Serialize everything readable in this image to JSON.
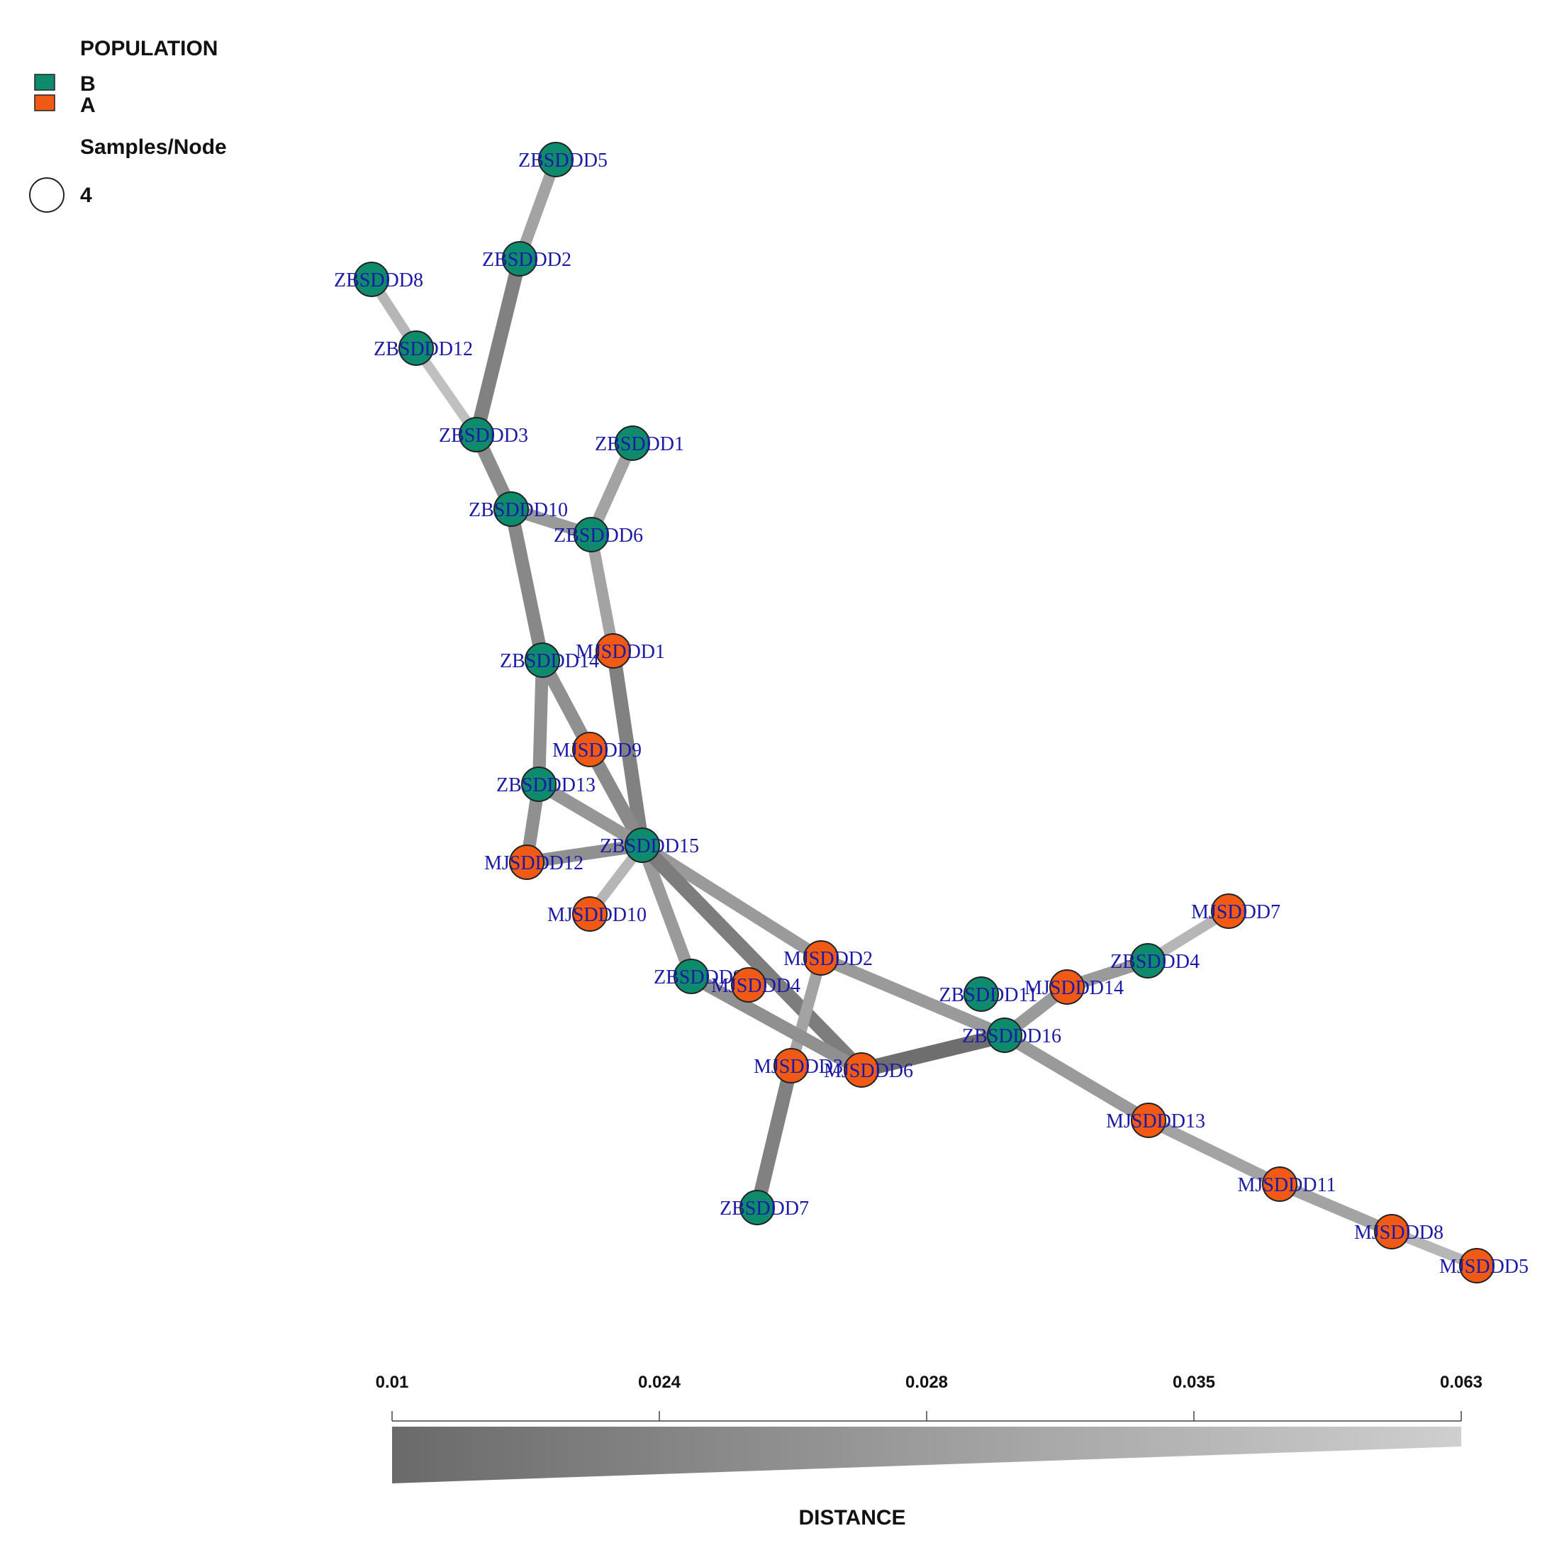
{
  "legend": {
    "population_title": "POPULATION",
    "groups": [
      {
        "label": "B",
        "color": "#0e8a6c"
      },
      {
        "label": "A",
        "color": "#f05a14"
      }
    ],
    "size_title": "Samples/Node",
    "size_value": "4"
  },
  "nodes": [
    {
      "id": "ZBSDDD5",
      "group": "B"
    },
    {
      "id": "ZBSDDD2",
      "group": "B"
    },
    {
      "id": "ZBSDDD8",
      "group": "B"
    },
    {
      "id": "ZBSDDD12",
      "group": "B"
    },
    {
      "id": "ZBSDDD3",
      "group": "B"
    },
    {
      "id": "ZBSDDD1",
      "group": "B"
    },
    {
      "id": "ZBSDDD10",
      "group": "B"
    },
    {
      "id": "ZBSDDD6",
      "group": "B"
    },
    {
      "id": "ZBSDDD14",
      "group": "B"
    },
    {
      "id": "MJSDDD1",
      "group": "A"
    },
    {
      "id": "MJSDDD9",
      "group": "A"
    },
    {
      "id": "ZBSDDD13",
      "group": "B"
    },
    {
      "id": "ZBSDDD15",
      "group": "B"
    },
    {
      "id": "MJSDDD12",
      "group": "A"
    },
    {
      "id": "MJSDDD10",
      "group": "A"
    },
    {
      "id": "MJSDDD7",
      "group": "A"
    },
    {
      "id": "ZBSDDD4",
      "group": "B"
    },
    {
      "id": "MJSDDD2",
      "group": "A"
    },
    {
      "id": "ZBSDDD9",
      "group": "B"
    },
    {
      "id": "MJSDDD4",
      "group": "A"
    },
    {
      "id": "ZBSDDD11",
      "group": "B"
    },
    {
      "id": "MJSDDD14",
      "group": "A"
    },
    {
      "id": "ZBSDDD16",
      "group": "B"
    },
    {
      "id": "MJSDDD3",
      "group": "A"
    },
    {
      "id": "MJSDDD6",
      "group": "A"
    },
    {
      "id": "MJSDDD13",
      "group": "A"
    },
    {
      "id": "MJSDDD11",
      "group": "A"
    },
    {
      "id": "ZBSDDD7",
      "group": "B"
    },
    {
      "id": "MJSDDD8",
      "group": "A"
    },
    {
      "id": "MJSDDD5",
      "group": "A"
    }
  ],
  "edges": [
    {
      "source": "ZBSDDD5",
      "target": "ZBSDDD2",
      "distance": 0.04
    },
    {
      "source": "ZBSDDD2",
      "target": "ZBSDDD3",
      "distance": 0.022
    },
    {
      "source": "ZBSDDD8",
      "target": "ZBSDDD12",
      "distance": 0.05
    },
    {
      "source": "ZBSDDD12",
      "target": "ZBSDDD3",
      "distance": 0.055
    },
    {
      "source": "ZBSDDD3",
      "target": "ZBSDDD10",
      "distance": 0.028
    },
    {
      "source": "ZBSDDD1",
      "target": "ZBSDDD6",
      "distance": 0.04
    },
    {
      "source": "ZBSDDD10",
      "target": "ZBSDDD6",
      "distance": 0.035
    },
    {
      "source": "ZBSDDD10",
      "target": "ZBSDDD14",
      "distance": 0.026
    },
    {
      "source": "ZBSDDD6",
      "target": "MJSDDD1",
      "distance": 0.04
    },
    {
      "source": "MJSDDD1",
      "target": "ZBSDDD15",
      "distance": 0.022
    },
    {
      "source": "ZBSDDD14",
      "target": "MJSDDD9",
      "distance": 0.03
    },
    {
      "source": "ZBSDDD14",
      "target": "ZBSDDD13",
      "distance": 0.03
    },
    {
      "source": "MJSDDD9",
      "target": "ZBSDDD15",
      "distance": 0.027
    },
    {
      "source": "ZBSDDD13",
      "target": "ZBSDDD15",
      "distance": 0.033
    },
    {
      "source": "ZBSDDD13",
      "target": "MJSDDD12",
      "distance": 0.03
    },
    {
      "source": "MJSDDD12",
      "target": "ZBSDDD15",
      "distance": 0.03
    },
    {
      "source": "MJSDDD10",
      "target": "ZBSDDD15",
      "distance": 0.05
    },
    {
      "source": "ZBSDDD15",
      "target": "MJSDDD2",
      "distance": 0.035
    },
    {
      "source": "ZBSDDD15",
      "target": "ZBSDDD9",
      "distance": 0.035
    },
    {
      "source": "ZBSDDD15",
      "target": "MJSDDD6",
      "distance": 0.02
    },
    {
      "source": "MJSDDD2",
      "target": "ZBSDDD16",
      "distance": 0.035
    },
    {
      "source": "MJSDDD2",
      "target": "MJSDDD3",
      "distance": 0.04
    },
    {
      "source": "ZBSDDD9",
      "target": "MJSDDD6",
      "distance": 0.03
    },
    {
      "source": "MJSDDD6",
      "target": "ZBSDDD16",
      "distance": 0.012
    },
    {
      "source": "MJSDDD3",
      "target": "ZBSDDD7",
      "distance": 0.022
    },
    {
      "source": "ZBSDDD16",
      "target": "MJSDDD14",
      "distance": 0.035
    },
    {
      "source": "MJSDDD14",
      "target": "ZBSDDD4",
      "distance": 0.035
    },
    {
      "source": "ZBSDDD4",
      "target": "MJSDDD7",
      "distance": 0.05
    },
    {
      "source": "ZBSDDD16",
      "target": "MJSDDD13",
      "distance": 0.035
    },
    {
      "source": "MJSDDD13",
      "target": "MJSDDD11",
      "distance": 0.04
    },
    {
      "source": "MJSDDD11",
      "target": "MJSDDD8",
      "distance": 0.04
    },
    {
      "source": "MJSDDD8",
      "target": "MJSDDD5",
      "distance": 0.05
    }
  ],
  "distance_scale": {
    "title": "DISTANCE",
    "ticks": [
      "0.01",
      "0.024",
      "0.028",
      "0.035",
      "0.063"
    ],
    "color_dark": "#6a6a6a",
    "color_light": "#cfcfcf"
  }
}
